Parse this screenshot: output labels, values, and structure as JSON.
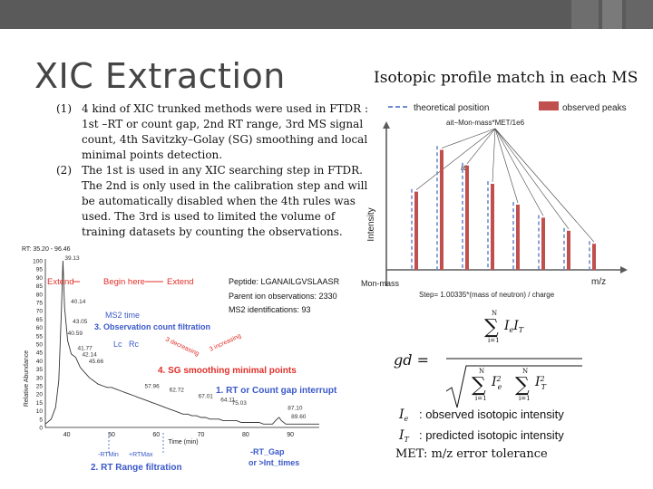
{
  "slide": {
    "title": "XIC Extraction",
    "subtitle": "Isotopic profile match in each MS",
    "notes": [
      {
        "num": "(1)",
        "text": "4 kind of XIC trunked methods were used in FTDR : 1st –RT or count gap, 2nd RT range, 3rd MS signal count, 4th Savitzky–Golay (SG) smoothing and local minimal points detection."
      },
      {
        "num": "(2)",
        "text": "The 1st is used in any XIC searching step in FTDR. The 2nd is only used in the calibration step and will be automatically disabled when the 4th rules was used. The 3rd is used to limited the volume of training datasets by counting the observations."
      }
    ],
    "met_note": "MET: m/z error tolerance"
  },
  "xic": {
    "rt_label": "RT: 35.20 - 96.46",
    "ylabel": "Relative Abundance",
    "xlabel": "Time (min)",
    "yticks": [
      "100",
      "95",
      "90",
      "85",
      "80",
      "75",
      "70",
      "65",
      "60",
      "55",
      "50",
      "45",
      "40",
      "35",
      "30",
      "25",
      "20",
      "15",
      "10",
      "5",
      "0"
    ],
    "xticks": [
      "40",
      "50",
      "60",
      "70",
      "80",
      "90"
    ],
    "xrange": [
      35.2,
      96.46
    ],
    "trace": [
      [
        35.2,
        2
      ],
      [
        36.5,
        5
      ],
      [
        37.5,
        12
      ],
      [
        38.2,
        28
      ],
      [
        38.8,
        70
      ],
      [
        39.13,
        100
      ],
      [
        39.5,
        72
      ],
      [
        40.2,
        52
      ],
      [
        41,
        44
      ],
      [
        42,
        42
      ],
      [
        43,
        36
      ],
      [
        44,
        33
      ],
      [
        45,
        30
      ],
      [
        46,
        28
      ],
      [
        47,
        26
      ],
      [
        48,
        25
      ],
      [
        49,
        24
      ],
      [
        50,
        24
      ],
      [
        51,
        23
      ],
      [
        52,
        22
      ],
      [
        53,
        21
      ],
      [
        54,
        20
      ],
      [
        55,
        19
      ],
      [
        56,
        18
      ],
      [
        57,
        17
      ],
      [
        58,
        16
      ],
      [
        59,
        15
      ],
      [
        60,
        14
      ],
      [
        61,
        13
      ],
      [
        62,
        12
      ],
      [
        63,
        11
      ],
      [
        64,
        10
      ],
      [
        65,
        9
      ],
      [
        66,
        8
      ],
      [
        67,
        8
      ],
      [
        68,
        7
      ],
      [
        69,
        7
      ],
      [
        70,
        6
      ],
      [
        71,
        6
      ],
      [
        72,
        5
      ],
      [
        73,
        5
      ],
      [
        74,
        5
      ],
      [
        75,
        4
      ],
      [
        76,
        4
      ],
      [
        77,
        4
      ],
      [
        78,
        4
      ],
      [
        79,
        3
      ],
      [
        80,
        3
      ],
      [
        81,
        3
      ],
      [
        82,
        3
      ],
      [
        83,
        3
      ],
      [
        84,
        2
      ],
      [
        85,
        2
      ],
      [
        86,
        2
      ],
      [
        87,
        5
      ],
      [
        87.5,
        6
      ],
      [
        88,
        4
      ],
      [
        89,
        2
      ],
      [
        90,
        2
      ],
      [
        92,
        2
      ],
      [
        94,
        2
      ],
      [
        96.46,
        2
      ]
    ],
    "peak_labels": [
      {
        "x": 39.13,
        "y": 100,
        "text": "39.13"
      },
      {
        "x": 40.5,
        "y": 74,
        "text": "40.14"
      },
      {
        "x": 40.9,
        "y": 62,
        "text": "43.05"
      },
      {
        "x": 39.8,
        "y": 55,
        "text": "40.59"
      },
      {
        "x": 42.0,
        "y": 46,
        "text": "41.77"
      },
      {
        "x": 43.0,
        "y": 42,
        "text": "42.14"
      },
      {
        "x": 44.5,
        "y": 38,
        "text": "45.66"
      },
      {
        "x": 57.0,
        "y": 23,
        "text": "57.96"
      },
      {
        "x": 62.5,
        "y": 21,
        "text": "62.72"
      },
      {
        "x": 69.0,
        "y": 17,
        "text": "67.01"
      },
      {
        "x": 74.0,
        "y": 15,
        "text": "64.11"
      },
      {
        "x": 76.5,
        "y": 13,
        "text": "75.03"
      },
      {
        "x": 89.0,
        "y": 10,
        "text": "87.10"
      },
      {
        "x": 89.8,
        "y": 5,
        "text": "89.60"
      }
    ],
    "anno_extend_left": "Extend",
    "anno_begin": "Begin here",
    "anno_extend_right": "Extend",
    "peptide": "Peptide: LGANAILGVSLAASR",
    "parent_obs": "Parent ion observations: 2330",
    "ms2_ids": "MS2 identifications: 93",
    "ms2_time": "MS2 time",
    "obs_filtration": "3. Observation count filtration",
    "lc": "Lc",
    "rc": "Rc",
    "decreasing": "3 decreasing",
    "increasing": "3 increasing",
    "sg_min": "4. SG smoothing minimal points",
    "rt_gap": "1. RT or Count gap interrupt",
    "rtmin": "-RTMin",
    "rtmax": "+RTMax",
    "rt_range": "2. RT Range filtration",
    "rtgap_label": "-RT_Gap",
    "int_times": "or >Int_times"
  },
  "iso": {
    "legend_theo": "theoretical position",
    "legend_obs": "observed peaks",
    "formula_top": "ait−Mon-mass*MET/1e6",
    "ylabel": "Intensity",
    "xlabel": "m/z",
    "monmass": "Mon-mass",
    "ie": "Ie",
    "step": "Step= 1.00335*(mass of neutron) / charge",
    "theo_heights": [
      0.62,
      0.95,
      0.82,
      0.68,
      0.52,
      0.42,
      0.32,
      0.22
    ],
    "obs_heights": [
      0.6,
      0.92,
      0.8,
      0.66,
      0.5,
      0.4,
      0.3,
      0.2
    ]
  },
  "formula": {
    "gd": "gd =",
    "ie_desc": ": observed isotopic intensity",
    "it_desc": ": predicted isotopic intensity"
  },
  "colors": {
    "red_anno": "#e0302a",
    "blue_anno": "#3a58c8",
    "iso_axis": "#5b5b5b",
    "theo_line": "#6d8ccf",
    "obs_bar": "#c0504d"
  }
}
